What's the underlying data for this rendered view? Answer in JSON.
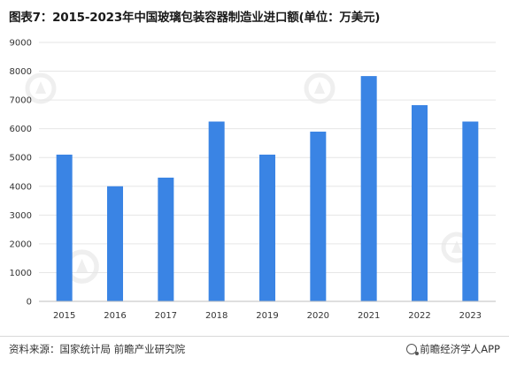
{
  "title": "图表7：2015-2023年中国玻璃包装容器制造业进口额(单位：万美元)",
  "footer": {
    "source": "资料来源：国家统计局 前瞻产业研究院",
    "brand": "前瞻经济学人APP"
  },
  "colors": {
    "bar": "#3a84e4",
    "gridline": "#e6e6e6",
    "axis": "#bfbfbf"
  },
  "chart_data": {
    "type": "bar",
    "title": "图表7：2015-2023年中国玻璃包装容器制造业进口额(单位：万美元)",
    "categories": [
      "2015",
      "2016",
      "2017",
      "2018",
      "2019",
      "2020",
      "2021",
      "2022",
      "2023"
    ],
    "values": [
      5100,
      4000,
      4300,
      6250,
      5100,
      5900,
      7830,
      6820,
      6250
    ],
    "xlabel": "",
    "ylabel": "",
    "ylim": [
      0,
      9000
    ],
    "yticks": [
      0,
      1000,
      2000,
      3000,
      4000,
      5000,
      6000,
      7000,
      8000,
      9000
    ],
    "grid": true,
    "legend": "none"
  }
}
